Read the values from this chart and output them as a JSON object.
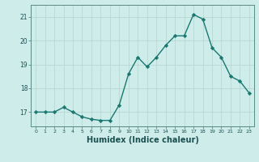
{
  "x": [
    0,
    1,
    2,
    3,
    4,
    5,
    6,
    7,
    8,
    9,
    10,
    11,
    12,
    13,
    14,
    15,
    16,
    17,
    18,
    19,
    20,
    21,
    22,
    23
  ],
  "y": [
    17.0,
    17.0,
    17.0,
    17.2,
    17.0,
    16.8,
    16.7,
    16.65,
    16.65,
    17.3,
    18.6,
    19.3,
    18.9,
    19.3,
    19.8,
    20.2,
    20.2,
    21.1,
    20.9,
    19.7,
    19.3,
    18.5,
    18.3,
    17.8
  ],
  "line_color": "#1a7870",
  "marker": "D",
  "marker_size": 2.2,
  "linewidth": 1.0,
  "bg_color": "#ceecea",
  "grid_color": "#b8d8d4",
  "xlabel": "Humidex (Indice chaleur)",
  "xlabel_fontsize": 7,
  "ylabel_ticks": [
    17,
    18,
    19,
    20,
    21
  ],
  "xtick_fontsize": 4.5,
  "ytick_fontsize": 5.5,
  "xlim": [
    -0.5,
    23.5
  ],
  "ylim": [
    16.4,
    21.5
  ]
}
